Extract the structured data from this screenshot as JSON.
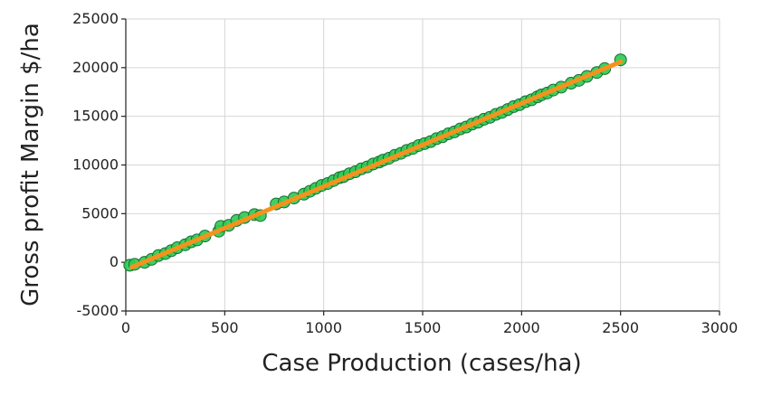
{
  "chart_data": {
    "type": "scatter",
    "title": "",
    "xlabel": "Case Production (cases/ha)",
    "ylabel": "Gross profit Margin $/ha",
    "xlim": [
      0,
      3000
    ],
    "ylim": [
      -5000,
      25000
    ],
    "xticks": [
      0,
      500,
      1000,
      1500,
      2000,
      2500,
      3000
    ],
    "yticks": [
      -5000,
      0,
      5000,
      10000,
      15000,
      20000,
      25000
    ],
    "xtick_labels": [
      "0",
      "500",
      "1000",
      "1500",
      "2000",
      "2500",
      "3000"
    ],
    "ytick_labels": [
      "-5000",
      "0",
      "5000",
      "10000",
      "15000",
      "20000",
      "25000"
    ],
    "grid": true,
    "legend": "none",
    "colors": {
      "points": "#2ecc55",
      "point_edge": "#1a6b30",
      "trend": "#f5921e"
    },
    "series": [
      {
        "kind": "points",
        "x": [
          20,
          45,
          95,
          130,
          165,
          200,
          230,
          260,
          300,
          330,
          360,
          400,
          470,
          480,
          520,
          560,
          600,
          650,
          680,
          760,
          800,
          850,
          900,
          930,
          960,
          990,
          1020,
          1050,
          1080,
          1100,
          1130,
          1160,
          1190,
          1220,
          1250,
          1280,
          1300,
          1330,
          1360,
          1390,
          1420,
          1450,
          1480,
          1510,
          1540,
          1570,
          1600,
          1630,
          1660,
          1690,
          1720,
          1750,
          1780,
          1810,
          1840,
          1870,
          1900,
          1930,
          1960,
          1990,
          2020,
          2050,
          2080,
          2100,
          2130,
          2160,
          2200,
          2250,
          2290,
          2330,
          2380,
          2420,
          2500
        ],
        "y": [
          -300,
          -200,
          0,
          300,
          700,
          900,
          1200,
          1500,
          1800,
          2100,
          2300,
          2700,
          3200,
          3700,
          3800,
          4300,
          4600,
          4900,
          4800,
          6000,
          6200,
          6600,
          7000,
          7300,
          7600,
          7900,
          8100,
          8400,
          8700,
          8800,
          9100,
          9300,
          9600,
          9800,
          10100,
          10300,
          10500,
          10700,
          11000,
          11200,
          11500,
          11700,
          12000,
          12200,
          12400,
          12700,
          12900,
          13200,
          13400,
          13700,
          13900,
          14200,
          14400,
          14700,
          14900,
          15200,
          15400,
          15700,
          16000,
          16200,
          16500,
          16700,
          17000,
          17200,
          17400,
          17700,
          18000,
          18400,
          18700,
          19100,
          19500,
          19900,
          20800
        ]
      },
      {
        "kind": "trendline",
        "x": [
          30,
          2500
        ],
        "y": [
          -500,
          20600
        ]
      }
    ]
  }
}
